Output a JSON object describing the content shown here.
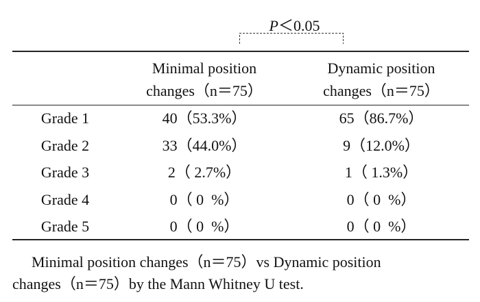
{
  "annotation": {
    "variable": "P",
    "comparison": "＜0.05"
  },
  "table": {
    "columns": [
      {
        "lines": [
          "Minimal position",
          "changes（n＝75）"
        ]
      },
      {
        "lines": [
          "Dynamic position",
          "changes（n＝75）"
        ]
      }
    ],
    "rows": [
      [
        "Grade 1",
        "40（53.3%）",
        "65（86.7%）"
      ],
      [
        "Grade 2",
        "33（44.0%）",
        "9（12.0%）"
      ],
      [
        "Grade 3",
        "2（ 2.7%）",
        "1（ 1.3%）"
      ],
      [
        "Grade 4",
        "0（ 0  %）",
        "0（ 0  %）"
      ],
      [
        "Grade 5",
        "0（ 0  %）",
        "0（ 0  %）"
      ]
    ]
  },
  "footnote": {
    "lines": [
      "Minimal position changes（n＝75）vs Dynamic position",
      "changes（n＝75）by the Mann Whitney U test."
    ]
  }
}
